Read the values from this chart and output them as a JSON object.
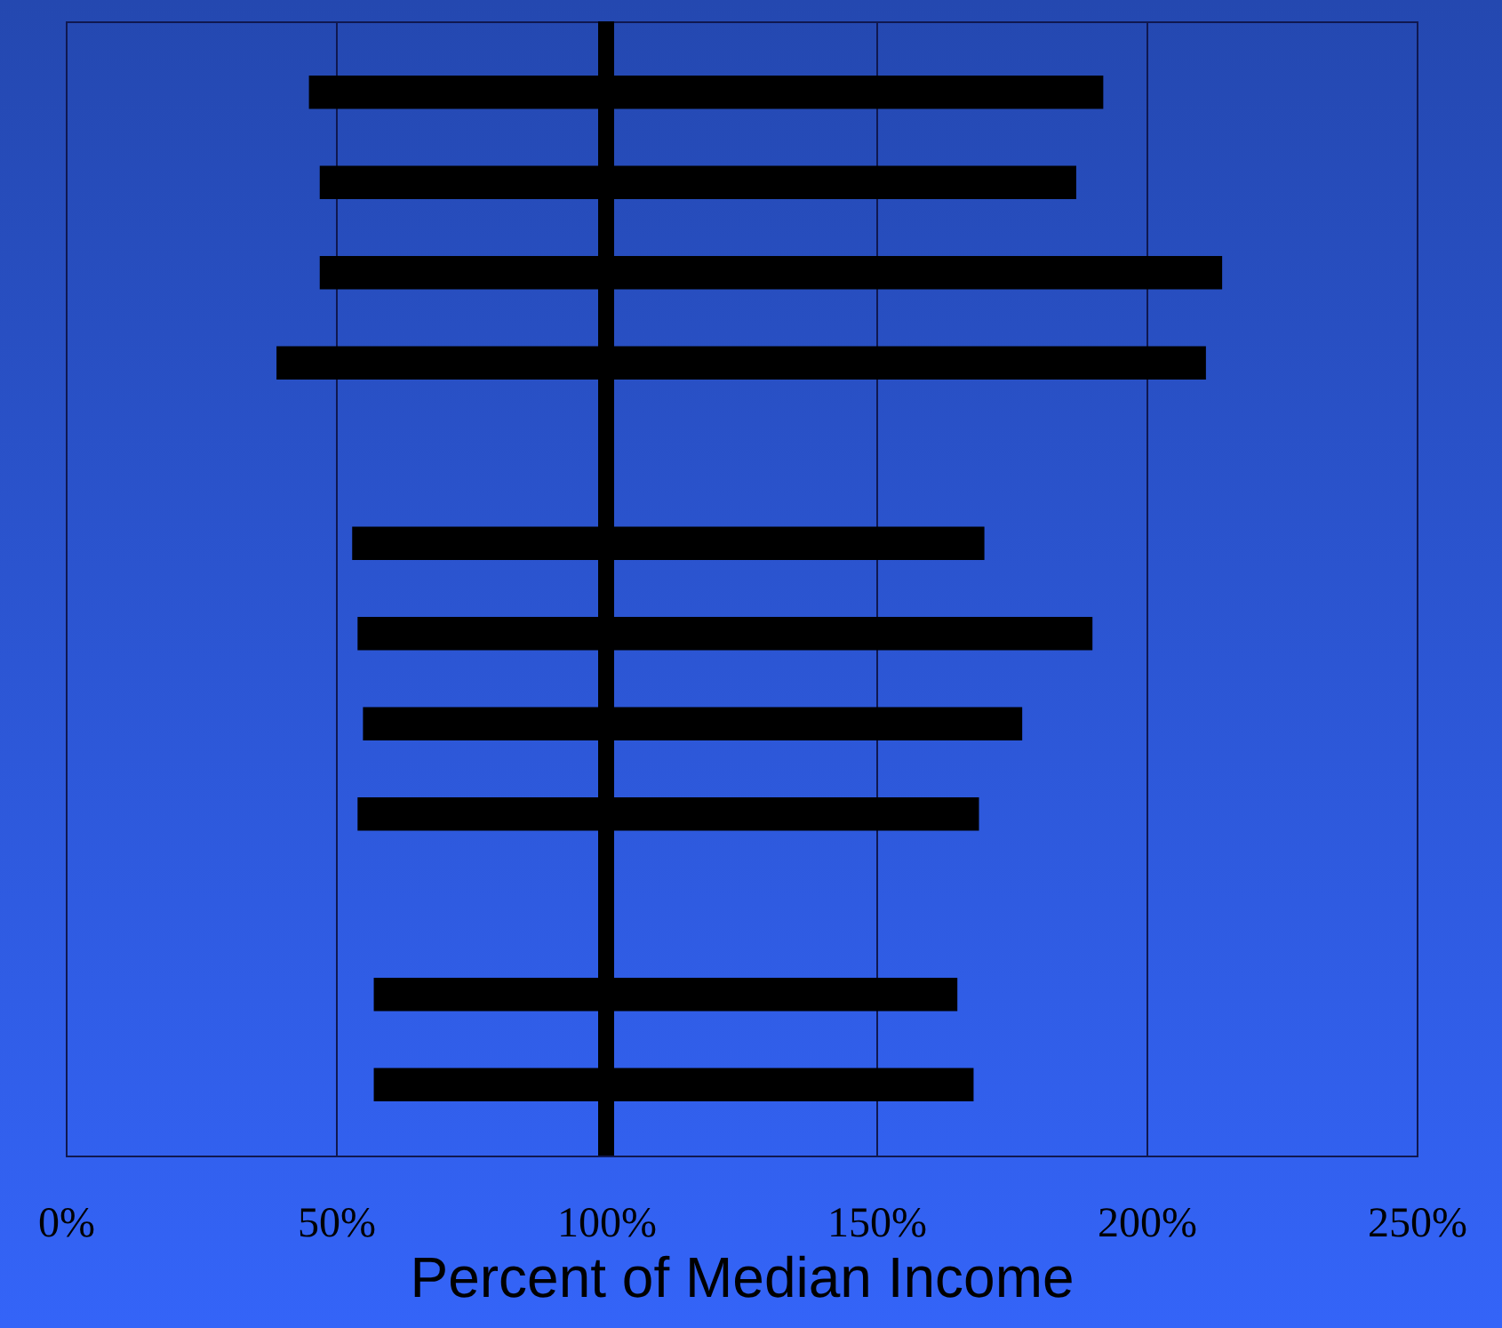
{
  "chart_data": {
    "type": "bar",
    "orientation": "horizontal",
    "xlabel": "Percent of Median Income",
    "categories": [
      null,
      null,
      null,
      null,
      null,
      null,
      null,
      null,
      null,
      null,
      null,
      null
    ],
    "base": [
      45,
      47,
      47,
      39,
      null,
      53,
      54,
      55,
      54,
      null,
      57,
      57
    ],
    "values": [
      147,
      140,
      167,
      172,
      null,
      117,
      136,
      122,
      115,
      null,
      108,
      111
    ],
    "color": "#000000",
    "xlim": [
      0,
      250
    ],
    "xticks": [
      {
        "value": 0,
        "label": "0%"
      },
      {
        "value": 50,
        "label": "50%"
      },
      {
        "value": 100,
        "label": "100%"
      },
      {
        "value": 150,
        "label": "150%"
      },
      {
        "value": 200,
        "label": "200%"
      },
      {
        "value": 250,
        "label": "250%"
      }
    ],
    "ref_lines": [
      {
        "axis": "x",
        "value": 100,
        "color": "#000000"
      }
    ],
    "grid": "x"
  }
}
